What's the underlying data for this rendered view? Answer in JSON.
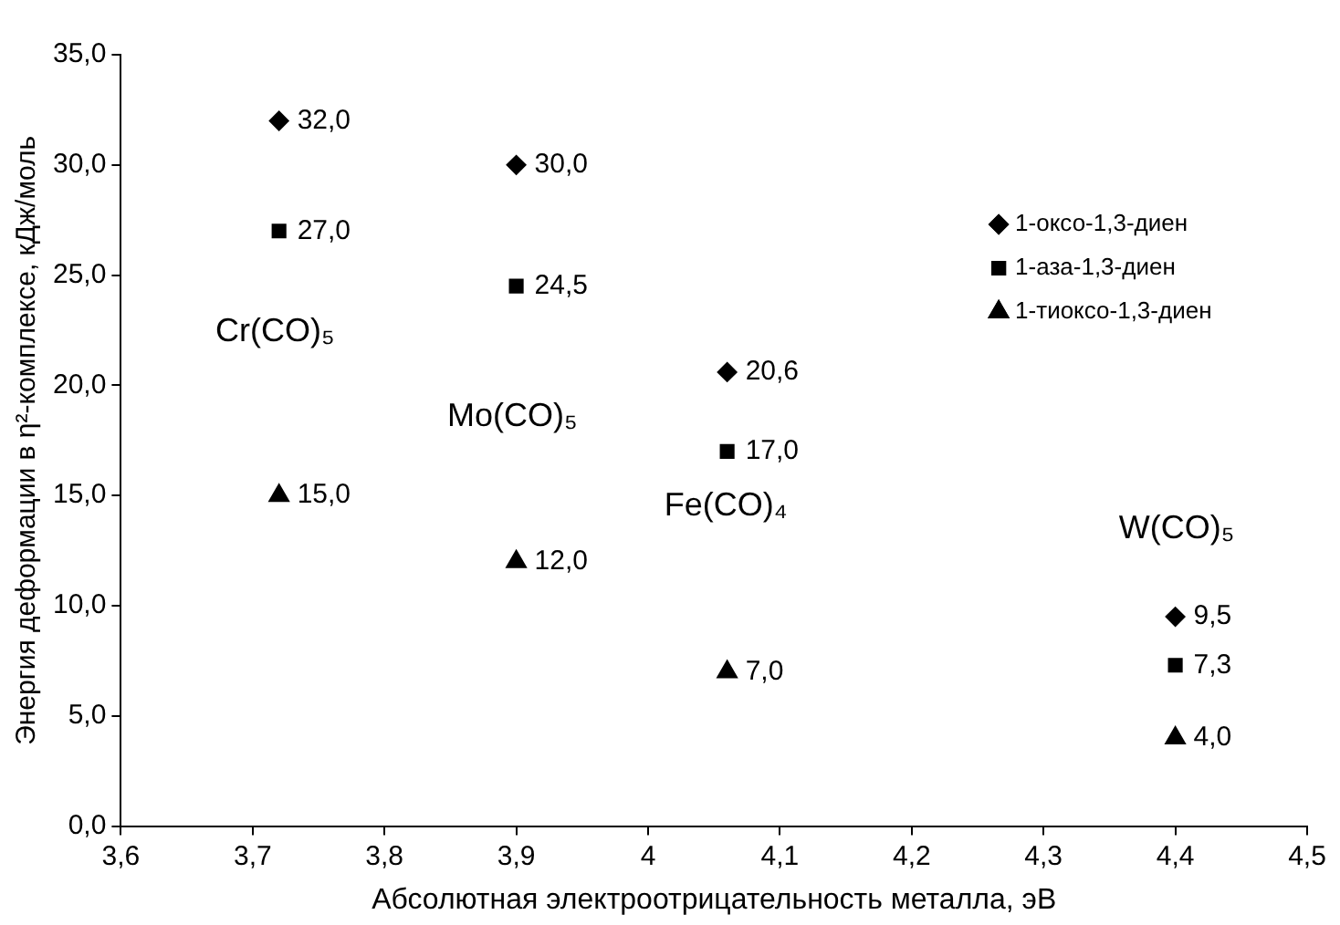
{
  "chart_data": {
    "type": "scatter",
    "xlabel": "Абсолютная электроотрицательность металла, эВ",
    "ylabel": "Энергия деформации в η²-комплексе, кДж/моль",
    "xlim": [
      3.6,
      4.5
    ],
    "xticks": [
      {
        "value": 3.6,
        "label": "3,6"
      },
      {
        "value": 3.7,
        "label": "3,7"
      },
      {
        "value": 3.8,
        "label": "3,8"
      },
      {
        "value": 3.9,
        "label": "3,9"
      },
      4,
      {
        "value": 4.1,
        "label": "4,1"
      },
      {
        "value": 4.2,
        "label": "4,2"
      },
      {
        "value": 4.3,
        "label": "4,3"
      },
      {
        "value": 4.4,
        "label": "4,4"
      },
      {
        "value": 4.5,
        "label": "4,5"
      }
    ],
    "ylim": [
      0,
      35
    ],
    "yticks": [
      {
        "value": 0,
        "label": "0,0"
      },
      {
        "value": 5,
        "label": "5,0"
      },
      {
        "value": 10,
        "label": "10,0"
      },
      {
        "value": 15,
        "label": "15,0"
      },
      {
        "value": 20,
        "label": "20,0"
      },
      {
        "value": 25,
        "label": "25,0"
      },
      {
        "value": 30,
        "label": "30,0"
      },
      {
        "value": 35,
        "label": "35,0"
      }
    ],
    "x": [
      3.72,
      3.9,
      4.06,
      4.4
    ],
    "series": [
      {
        "name": "1-оксо-1,3-диен",
        "color": "#000000",
        "marker": "diamond",
        "values": [
          32.0,
          30.0,
          20.6,
          9.5
        ],
        "value_labels": [
          "32,0",
          "30,0",
          "20,6",
          "9,5"
        ]
      },
      {
        "name": "1-аза-1,3-диен",
        "color": "#000000",
        "marker": "square",
        "values": [
          27.0,
          24.5,
          17.0,
          7.3
        ],
        "value_labels": [
          "27,0",
          "24,5",
          "17,0",
          "7,3"
        ]
      },
      {
        "name": "1-тиоксо-1,3-диен",
        "color": "#000000",
        "marker": "triangle",
        "values": [
          15.0,
          12.0,
          7.0,
          4.0
        ],
        "value_labels": [
          "15,0",
          "12,0",
          "7,0",
          "4,0"
        ]
      }
    ],
    "annotations": [
      "Cr(CO)₅",
      "Mo(CO)₅",
      "Fe(CO)₄",
      "W(CO)₅"
    ],
    "legend": "right",
    "grid": false
  }
}
